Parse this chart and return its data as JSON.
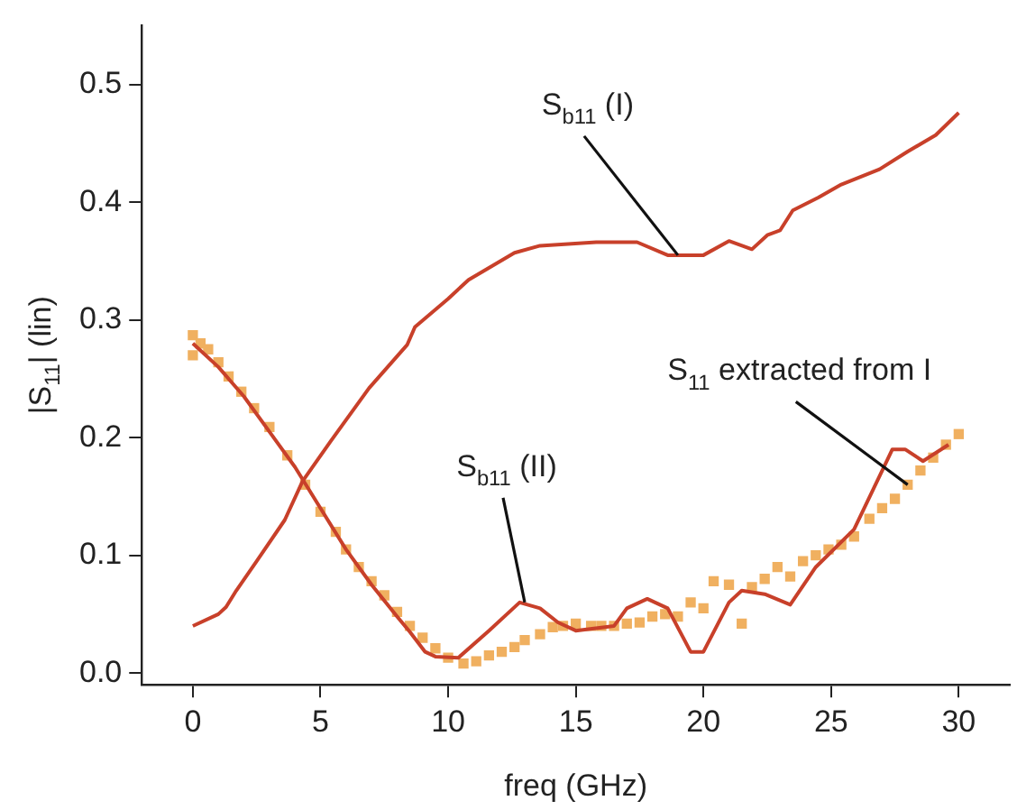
{
  "chart_data": {
    "type": "line",
    "xlabel": "freq (GHz)",
    "ylabel": "|S$_{11}$| (lin)",
    "xlim": [
      -2,
      32
    ],
    "xticks": [
      0,
      5,
      10,
      15,
      20,
      25,
      30
    ],
    "ylim": [
      -0.01,
      0.55
    ],
    "yticks": [
      {
        "value": 0,
        "label": "0.0"
      },
      {
        "value": 0.1,
        "label": "0.1"
      },
      {
        "value": 0.2,
        "label": "0.2"
      },
      {
        "value": 0.3,
        "label": "0.3"
      },
      {
        "value": 0.4,
        "label": "0.4"
      },
      {
        "value": 0.5,
        "label": "0.5"
      }
    ],
    "grid": false,
    "legend": false,
    "series": [
      {
        "color": "#c8402a",
        "marker": "none",
        "x": [
          0,
          1,
          1.3,
          1.7,
          2.5,
          3.6,
          4.3,
          5.4,
          6.9,
          8.4,
          8.7,
          10,
          10.8,
          12.6,
          13.6,
          15.8,
          17.4,
          18.6,
          19.1,
          20,
          21,
          21.9,
          22.5,
          23,
          23.5,
          24.5,
          25.4,
          26.9,
          28,
          29.1,
          30
        ],
        "values": [
          0.04,
          0.05,
          0.056,
          0.07,
          0.095,
          0.13,
          0.163,
          0.197,
          0.242,
          0.279,
          0.294,
          0.318,
          0.334,
          0.357,
          0.363,
          0.366,
          0.366,
          0.355,
          0.355,
          0.355,
          0.367,
          0.36,
          0.372,
          0.376,
          0.393,
          0.404,
          0.415,
          0.428,
          0.443,
          0.457,
          0.476
        ]
      },
      {
        "color": "#c8402a",
        "marker": "none",
        "x": [
          0,
          1,
          2,
          3,
          4,
          5,
          6,
          7,
          8,
          8.5,
          9.1,
          9.5,
          10.4,
          11.6,
          12.8,
          13.6,
          14.3,
          15,
          16.5,
          17,
          17.8,
          18.6,
          19.5,
          20,
          21,
          21.5,
          22.4,
          23.4,
          24.4,
          25.9,
          27.4,
          27.9,
          28.6,
          29.6
        ],
        "values": [
          0.28,
          0.26,
          0.235,
          0.205,
          0.175,
          0.14,
          0.105,
          0.075,
          0.048,
          0.035,
          0.018,
          0.014,
          0.013,
          0.036,
          0.06,
          0.055,
          0.043,
          0.036,
          0.04,
          0.055,
          0.063,
          0.055,
          0.018,
          0.018,
          0.06,
          0.07,
          0.067,
          0.058,
          0.09,
          0.122,
          0.19,
          0.19,
          0.18,
          0.194
        ]
      },
      {
        "type": "scatter",
        "color": "#f0b060",
        "marker": "square",
        "x": [
          0,
          0,
          0.3,
          0.6,
          1,
          1.4,
          1.9,
          2.4,
          3,
          3.7,
          4.4,
          5,
          5.6,
          6,
          6.5,
          7,
          7.5,
          8,
          8.5,
          9,
          9.5,
          10,
          10.6,
          11.1,
          11.6,
          12.1,
          12.6,
          13,
          13.6,
          14.1,
          14.5,
          15,
          15.6,
          16,
          16.5,
          17,
          17.5,
          18,
          18.5,
          19,
          19.5,
          20,
          20.4,
          21,
          21.5,
          21.9,
          22.4,
          22.9,
          23.4,
          23.9,
          24.4,
          24.9,
          25.4,
          25.9,
          26.5,
          27,
          27.5,
          28,
          28.5,
          29,
          29.5,
          30
        ],
        "values": [
          0.287,
          0.27,
          0.28,
          0.275,
          0.264,
          0.252,
          0.239,
          0.225,
          0.209,
          0.185,
          0.16,
          0.137,
          0.12,
          0.105,
          0.09,
          0.078,
          0.066,
          0.052,
          0.04,
          0.03,
          0.021,
          0.013,
          0.008,
          0.01,
          0.015,
          0.018,
          0.022,
          0.028,
          0.033,
          0.039,
          0.04,
          0.042,
          0.04,
          0.04,
          0.04,
          0.042,
          0.043,
          0.048,
          0.05,
          0.048,
          0.06,
          0.055,
          0.078,
          0.075,
          0.042,
          0.073,
          0.08,
          0.09,
          0.082,
          0.095,
          0.1,
          0.105,
          0.109,
          0.116,
          0.131,
          0.14,
          0.148,
          0.16,
          0.172,
          0.183,
          0.194,
          0.203
        ]
      }
    ],
    "annotations": [
      {
        "text": "S$_{b11}$ (I)",
        "x": 19,
        "y": 0.355
      },
      {
        "text": "S$_{b11}$ (II)",
        "x": 13,
        "y": 0.06
      },
      {
        "text": "S$_{11}$ extracted from I",
        "x": 28,
        "y": 0.16
      }
    ]
  }
}
